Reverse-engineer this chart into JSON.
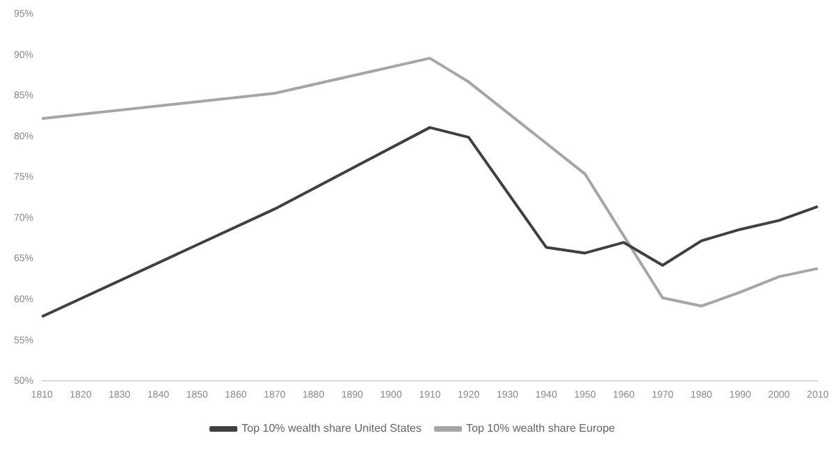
{
  "chart_data": {
    "type": "line",
    "categories": [
      "1810",
      "1820",
      "1830",
      "1840",
      "1850",
      "1860",
      "1870",
      "1880",
      "1890",
      "1900",
      "1910",
      "1920",
      "1930",
      "1940",
      "1950",
      "1960",
      "1970",
      "1980",
      "1990",
      "2000",
      "2010"
    ],
    "series": [
      {
        "name": "Top 10% wealth share United States",
        "color": "#404040",
        "values": [
          57.9,
          null,
          null,
          null,
          null,
          null,
          71.1,
          null,
          null,
          null,
          81.1,
          79.9,
          null,
          66.4,
          65.7,
          67.0,
          64.2,
          67.2,
          68.6,
          69.7,
          71.4
        ]
      },
      {
        "name": "Top 10% wealth share Europe",
        "color": "#a6a6a6",
        "values": [
          82.2,
          null,
          null,
          null,
          null,
          null,
          85.3,
          null,
          null,
          null,
          89.6,
          86.7,
          null,
          null,
          75.4,
          null,
          60.2,
          59.2,
          60.9,
          62.8,
          63.8
        ]
      }
    ],
    "ylim": [
      50,
      95
    ],
    "yticks": [
      {
        "value": 50,
        "label": "50%"
      },
      {
        "value": 55,
        "label": "55%"
      },
      {
        "value": 60,
        "label": "60%"
      },
      {
        "value": 65,
        "label": "65%"
      },
      {
        "value": 70,
        "label": "70%"
      },
      {
        "value": 75,
        "label": "75%"
      },
      {
        "value": 80,
        "label": "80%"
      },
      {
        "value": 85,
        "label": "85%"
      },
      {
        "value": 90,
        "label": "90%"
      },
      {
        "value": 95,
        "label": "95%"
      }
    ],
    "grid": false,
    "legend": "bottom",
    "marker": "none",
    "line_style": "solid"
  }
}
